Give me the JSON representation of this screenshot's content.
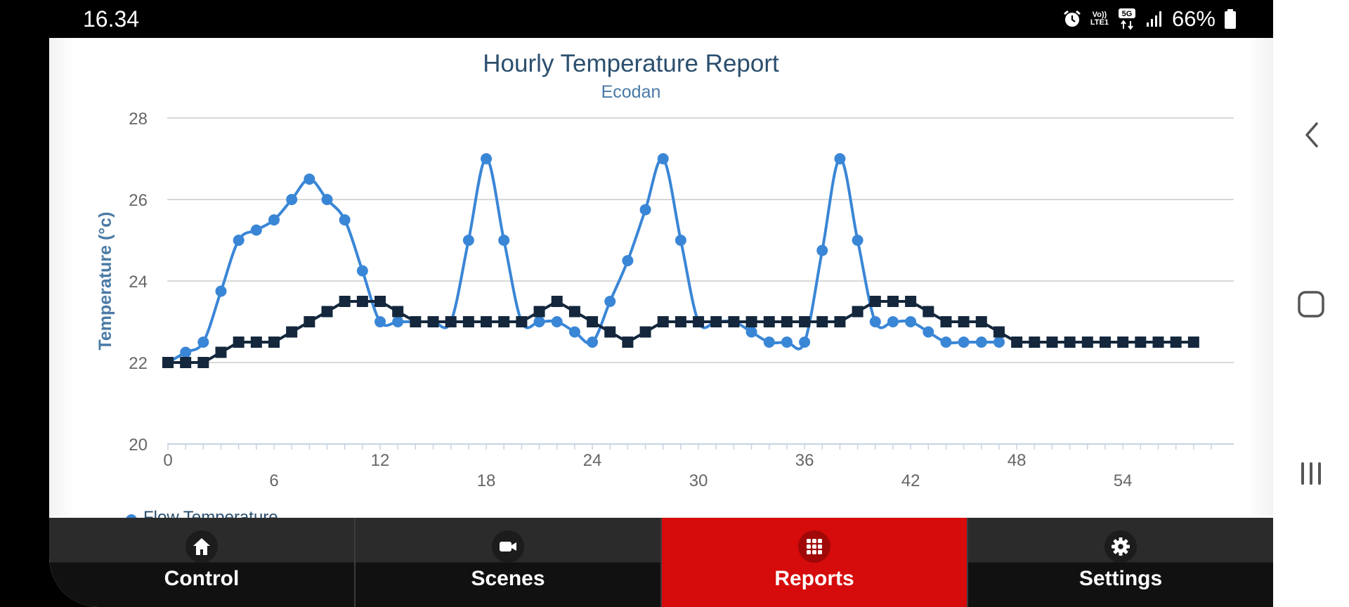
{
  "status_bar": {
    "time": "16.34",
    "battery": "66%",
    "lte_label": "Vo))\nLTE1",
    "net_label": "5G"
  },
  "chart_data": {
    "type": "line",
    "title": "Hourly Temperature Report",
    "subtitle": "Ecodan",
    "ylabel": "Temperature (°c)",
    "xlabel": "",
    "ylim": [
      20,
      28
    ],
    "xlim": [
      0,
      59
    ],
    "yticks": [
      20,
      22,
      24,
      26,
      28
    ],
    "xticks_upper": [
      0,
      12,
      24,
      36,
      48
    ],
    "xticks_lower": [
      6,
      18,
      30,
      42,
      54
    ],
    "grid": true,
    "series": [
      {
        "name": "",
        "marker": "circle",
        "color": "#3a86d6",
        "x": [
          0,
          1,
          2,
          3,
          4,
          5,
          6,
          7,
          8,
          9,
          10,
          11,
          12,
          13,
          14,
          15,
          16,
          17,
          18,
          19,
          20,
          21,
          22,
          23,
          24,
          25,
          26,
          27,
          28,
          29,
          30,
          31,
          32,
          33,
          34,
          35,
          36,
          37,
          38,
          39,
          40,
          41,
          42,
          43,
          44,
          45,
          46,
          47
        ],
        "values": [
          22,
          22.25,
          22.5,
          23.75,
          25,
          25.25,
          25.5,
          26,
          26.5,
          26,
          25.5,
          24.25,
          23,
          23,
          23,
          23,
          23,
          25,
          27,
          25,
          23,
          23,
          23,
          22.75,
          22.5,
          23.5,
          24.5,
          25.75,
          27,
          25,
          23,
          23,
          23,
          22.75,
          22.5,
          22.5,
          22.5,
          24.75,
          27,
          25,
          23,
          23,
          23,
          22.75,
          22.5,
          22.5,
          22.5,
          22.5
        ]
      },
      {
        "name": "",
        "marker": "square",
        "color": "#14273c",
        "x": [
          0,
          1,
          2,
          3,
          4,
          5,
          6,
          7,
          8,
          9,
          10,
          11,
          12,
          13,
          14,
          15,
          16,
          17,
          18,
          19,
          20,
          21,
          22,
          23,
          24,
          25,
          26,
          27,
          28,
          29,
          30,
          31,
          32,
          33,
          34,
          35,
          36,
          37,
          38,
          39,
          40,
          41,
          42,
          43,
          44,
          45,
          46,
          47,
          48,
          49,
          50,
          51,
          52,
          53,
          54,
          55,
          56,
          57,
          58
        ],
        "values": [
          22,
          22,
          22,
          22.25,
          22.5,
          22.5,
          22.5,
          22.75,
          23,
          23.25,
          23.5,
          23.5,
          23.5,
          23.25,
          23,
          23,
          23,
          23,
          23,
          23,
          23,
          23.25,
          23.5,
          23.25,
          23,
          22.75,
          22.5,
          22.75,
          23,
          23,
          23,
          23,
          23,
          23,
          23,
          23,
          23,
          23,
          23,
          23.25,
          23.5,
          23.5,
          23.5,
          23.25,
          23,
          23,
          23,
          22.75,
          22.5,
          22.5,
          22.5,
          22.5,
          22.5,
          22.5,
          22.5,
          22.5,
          22.5,
          22.5,
          22.5
        ]
      }
    ],
    "legend": {
      "visible_entry": "Flow Temperature",
      "placement": "bottom"
    }
  },
  "tabs": [
    {
      "label": "Control",
      "icon": "home-icon",
      "active": false
    },
    {
      "label": "Scenes",
      "icon": "video-camera-icon",
      "active": false
    },
    {
      "label": "Reports",
      "icon": "grid-icon",
      "active": true
    },
    {
      "label": "Settings",
      "icon": "gear-icon",
      "active": false
    }
  ],
  "colors": {
    "active_tab": "#d60b0b",
    "tab_bar": "#1a1a1a",
    "flow_series": "#3a86d6",
    "return_series": "#14273c"
  }
}
